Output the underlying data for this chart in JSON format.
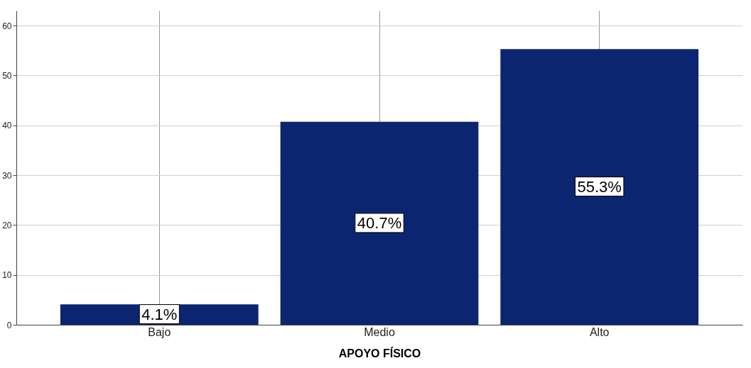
{
  "chart_data": {
    "type": "bar",
    "xlabel": "APOYO FÍSICO",
    "categories": [
      "Bajo",
      "Medio",
      "Alto"
    ],
    "series": [
      {
        "color": "#0b2570",
        "values": [
          4.1,
          40.7,
          55.3
        ],
        "value_labels": [
          "4.1%",
          "40.7%",
          "55.3%"
        ]
      }
    ],
    "ylim": [
      0,
      63
    ],
    "yticks": [
      0,
      10,
      20,
      30,
      40,
      50,
      60
    ],
    "grid": true
  }
}
